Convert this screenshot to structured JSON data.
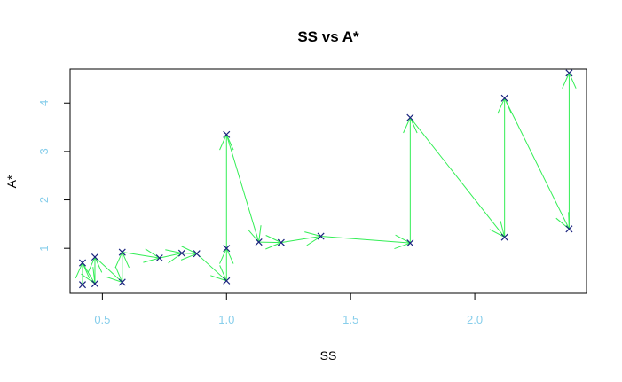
{
  "chart_data": {
    "type": "scatter",
    "title": "SS vs A*",
    "xlabel": "SS",
    "ylabel": "A*",
    "xlim": [
      0.37,
      2.45
    ],
    "ylim": [
      0.07,
      4.7
    ],
    "x_ticks": [
      0.5,
      1.0,
      1.5,
      2.0
    ],
    "x_tick_labels": [
      "0.5",
      "1.0",
      "1.5",
      "2.0"
    ],
    "y_ticks": [
      1,
      2,
      3,
      4
    ],
    "y_tick_labels": [
      "1",
      "2",
      "3",
      "4"
    ],
    "grid": false,
    "legend": "none",
    "colors": {
      "points": "#1a237e",
      "arrows": "#33ee55",
      "tick_labels": "#87ceeb",
      "frame": "#000000"
    },
    "points": [
      {
        "x": 0.42,
        "y": 0.25
      },
      {
        "x": 0.42,
        "y": 0.7
      },
      {
        "x": 0.47,
        "y": 0.27
      },
      {
        "x": 0.47,
        "y": 0.82
      },
      {
        "x": 0.58,
        "y": 0.3
      },
      {
        "x": 0.58,
        "y": 0.92
      },
      {
        "x": 0.73,
        "y": 0.8
      },
      {
        "x": 0.82,
        "y": 0.9
      },
      {
        "x": 0.88,
        "y": 0.89
      },
      {
        "x": 1.0,
        "y": 0.33
      },
      {
        "x": 1.0,
        "y": 1.0
      },
      {
        "x": 1.0,
        "y": 3.35
      },
      {
        "x": 1.13,
        "y": 1.13
      },
      {
        "x": 1.22,
        "y": 1.12
      },
      {
        "x": 1.38,
        "y": 1.25
      },
      {
        "x": 1.74,
        "y": 1.11
      },
      {
        "x": 1.74,
        "y": 3.7
      },
      {
        "x": 2.12,
        "y": 1.23
      },
      {
        "x": 2.12,
        "y": 4.1
      },
      {
        "x": 2.38,
        "y": 1.4
      },
      {
        "x": 2.38,
        "y": 4.62
      }
    ],
    "arrows": [
      {
        "from": [
          0.42,
          0.25
        ],
        "to": [
          0.42,
          0.7
        ]
      },
      {
        "from": [
          0.42,
          0.7
        ],
        "to": [
          0.47,
          0.27
        ]
      },
      {
        "from": [
          0.47,
          0.27
        ],
        "to": [
          0.47,
          0.82
        ]
      },
      {
        "from": [
          0.47,
          0.82
        ],
        "to": [
          0.58,
          0.3
        ]
      },
      {
        "from": [
          0.58,
          0.3
        ],
        "to": [
          0.58,
          0.92
        ]
      },
      {
        "from": [
          0.58,
          0.92
        ],
        "to": [
          0.73,
          0.8
        ]
      },
      {
        "from": [
          0.73,
          0.8
        ],
        "to": [
          0.82,
          0.9
        ]
      },
      {
        "from": [
          0.82,
          0.9
        ],
        "to": [
          0.88,
          0.89
        ]
      },
      {
        "from": [
          0.88,
          0.89
        ],
        "to": [
          1.0,
          0.33
        ]
      },
      {
        "from": [
          1.0,
          0.33
        ],
        "to": [
          1.0,
          1.0
        ]
      },
      {
        "from": [
          1.0,
          1.0
        ],
        "to": [
          1.0,
          3.35
        ]
      },
      {
        "from": [
          1.0,
          3.35
        ],
        "to": [
          1.13,
          1.13
        ]
      },
      {
        "from": [
          1.13,
          1.13
        ],
        "to": [
          1.22,
          1.12
        ]
      },
      {
        "from": [
          1.22,
          1.12
        ],
        "to": [
          1.38,
          1.25
        ]
      },
      {
        "from": [
          1.38,
          1.25
        ],
        "to": [
          1.74,
          1.11
        ]
      },
      {
        "from": [
          1.74,
          1.11
        ],
        "to": [
          1.74,
          3.7
        ]
      },
      {
        "from": [
          1.74,
          3.7
        ],
        "to": [
          2.12,
          1.23
        ]
      },
      {
        "from": [
          2.12,
          1.23
        ],
        "to": [
          2.12,
          4.1
        ]
      },
      {
        "from": [
          2.12,
          4.1
        ],
        "to": [
          2.38,
          1.4
        ]
      },
      {
        "from": [
          2.38,
          1.4
        ],
        "to": [
          2.38,
          4.62
        ]
      }
    ]
  }
}
